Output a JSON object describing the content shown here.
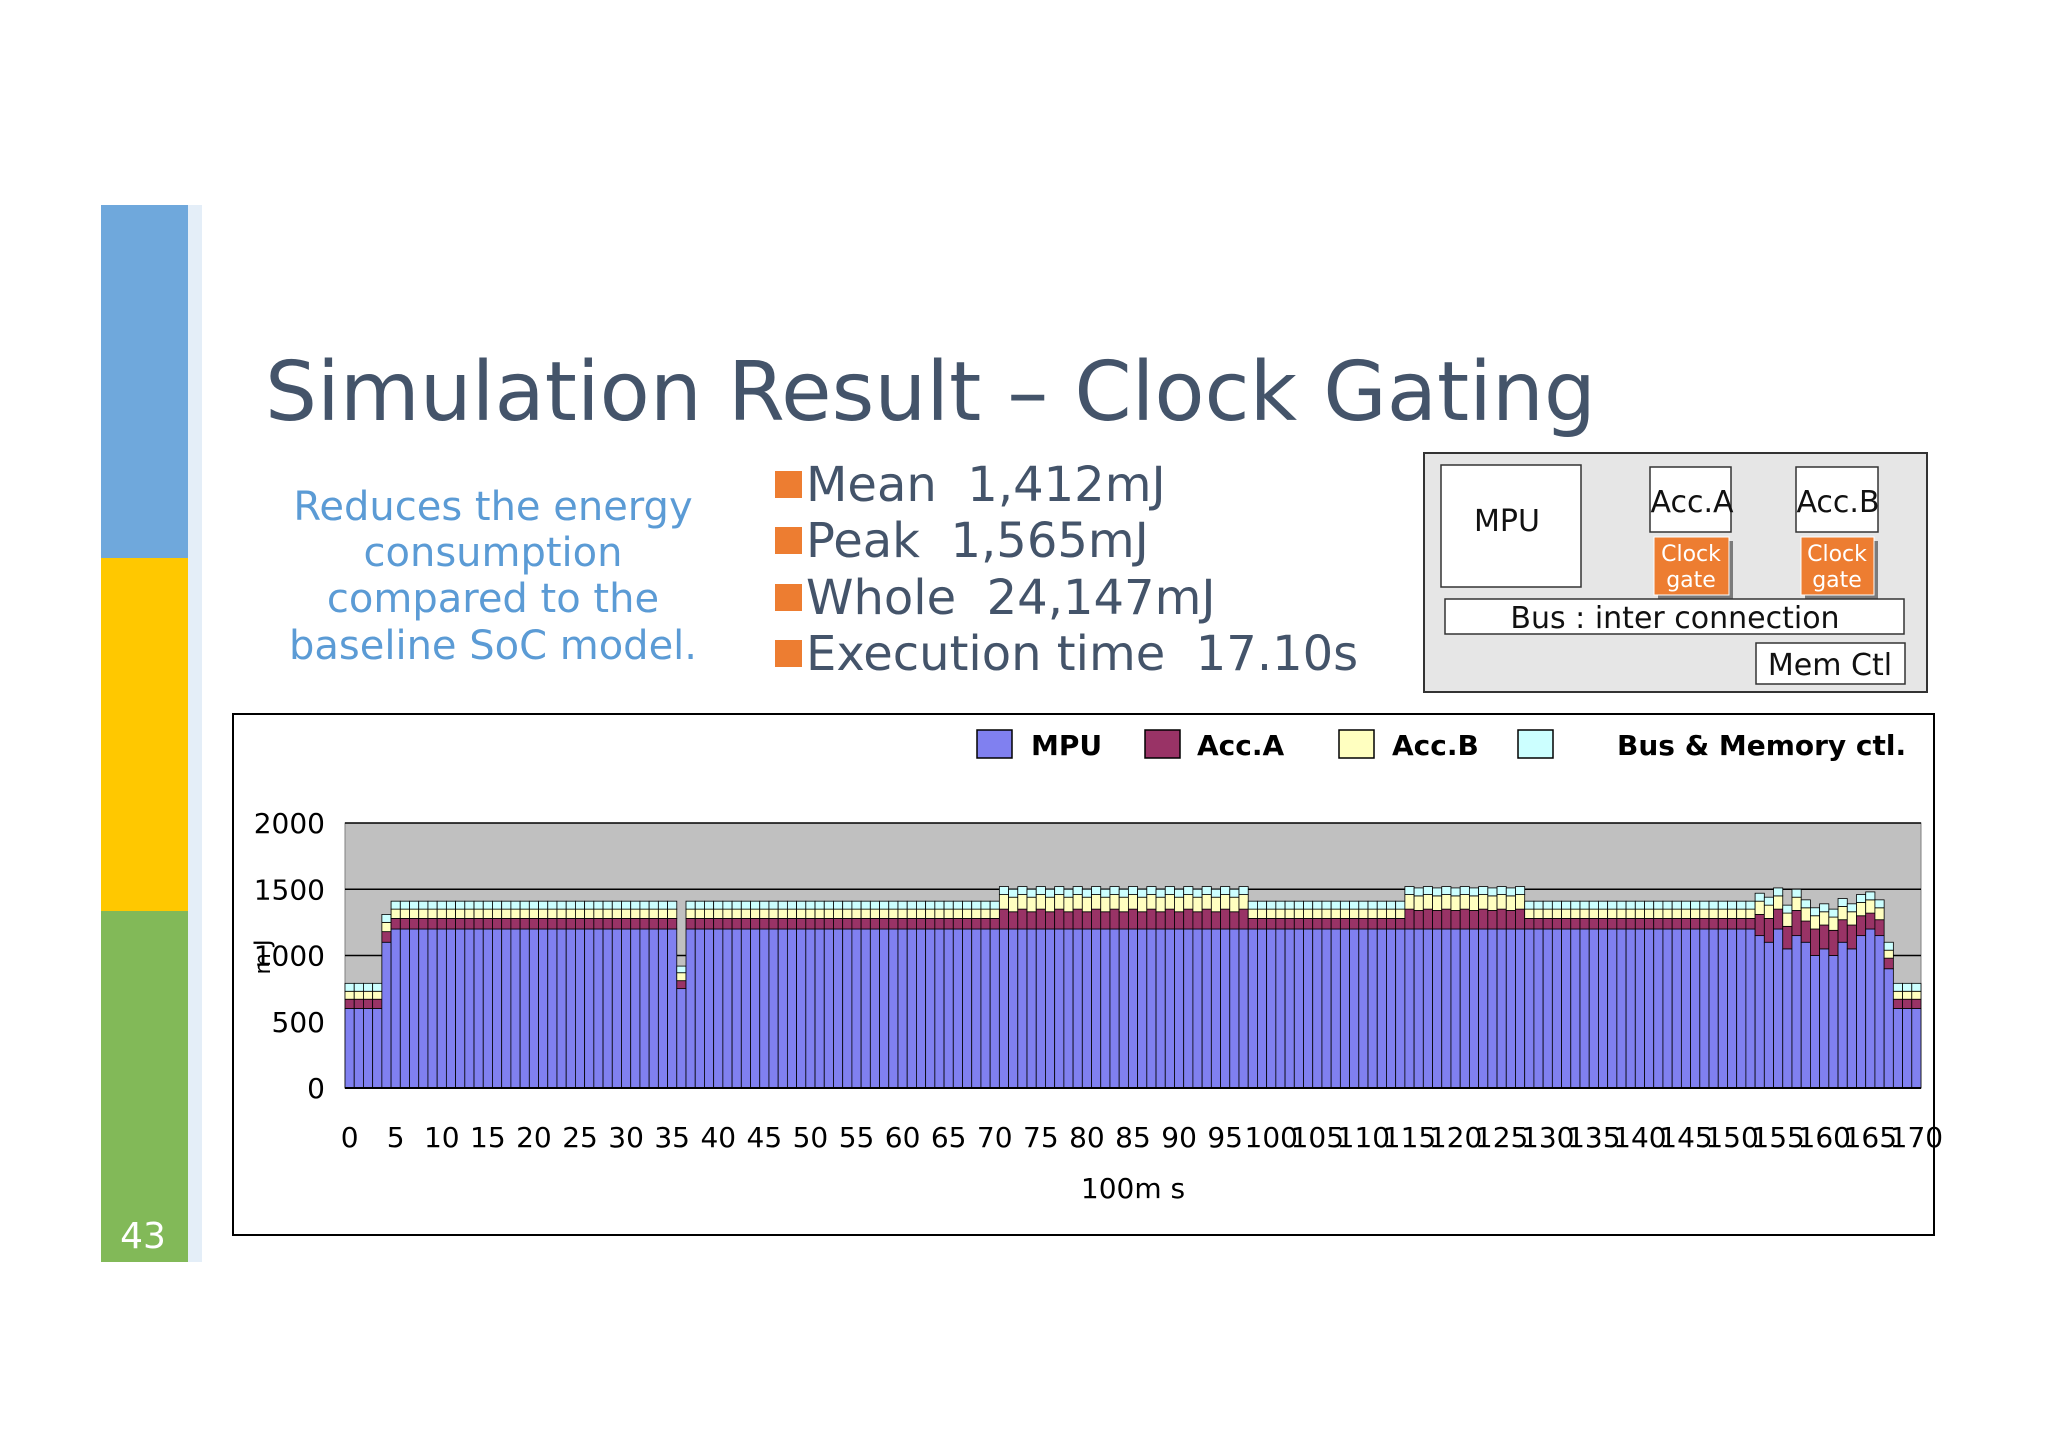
{
  "slide_number": "43",
  "title": "Simulation Result – Clock Gating",
  "side_text": [
    "Reduces the energy",
    "consumption",
    "compared to the",
    "baseline SoC model."
  ],
  "bullets": [
    "Mean  1,412mJ",
    "Peak  1,565mJ",
    "Whole  24,147mJ",
    "Execution time  17.10s"
  ],
  "diagram": {
    "mpu": "MPU",
    "acc_a": "Acc.A",
    "acc_b": "Acc.B",
    "clock_gate_a": [
      "Clock",
      "gate"
    ],
    "clock_gate_b": [
      "Clock",
      "gate"
    ],
    "bus": "Bus : inter connection",
    "mem": "Mem Ctl"
  },
  "chart_data": {
    "type": "stacked_bar",
    "y_label": "m J",
    "x_label": "100m s",
    "ylim": [
      0,
      2000
    ],
    "yticks": [
      0,
      500,
      1000,
      1500,
      2000
    ],
    "grid": true,
    "categories": [
      0,
      null,
      null,
      null,
      null,
      5,
      null,
      null,
      null,
      null,
      10,
      null,
      null,
      null,
      null,
      15,
      null,
      null,
      null,
      null,
      20,
      null,
      null,
      null,
      null,
      25,
      null,
      null,
      null,
      null,
      30,
      null,
      null,
      null,
      null,
      35,
      null,
      null,
      null,
      null,
      40,
      null,
      null,
      null,
      null,
      45,
      null,
      null,
      null,
      null,
      50,
      null,
      null,
      null,
      null,
      55,
      null,
      null,
      null,
      null,
      60,
      null,
      null,
      null,
      null,
      65,
      null,
      null,
      null,
      null,
      70,
      null,
      null,
      null,
      null,
      75,
      null,
      null,
      null,
      null,
      80,
      null,
      null,
      null,
      null,
      85,
      null,
      null,
      null,
      null,
      90,
      null,
      null,
      null,
      null,
      95,
      null,
      null,
      null,
      null,
      100,
      null,
      null,
      null,
      null,
      105,
      null,
      null,
      null,
      null,
      110,
      null,
      null,
      null,
      null,
      115,
      null,
      null,
      null,
      null,
      120,
      null,
      null,
      null,
      null,
      125,
      null,
      null,
      null,
      null,
      130,
      null,
      null,
      null,
      null,
      135,
      null,
      null,
      null,
      null,
      140,
      null,
      null,
      null,
      null,
      145,
      null,
      null,
      null,
      null,
      150,
      null,
      null,
      null,
      null,
      155,
      null,
      null,
      null,
      null,
      160,
      null,
      null,
      null,
      null,
      165,
      null,
      null,
      null,
      null,
      170
    ],
    "series": [
      {
        "name": "MPU",
        "color": "#8080f0",
        "values": [
          600,
          600,
          600,
          600,
          1100,
          1200,
          1200,
          1200,
          1200,
          1200,
          1200,
          1200,
          1200,
          1200,
          1200,
          1200,
          1200,
          1200,
          1200,
          1200,
          1200,
          1200,
          1200,
          1200,
          1200,
          1200,
          1200,
          1200,
          1200,
          1200,
          1200,
          1200,
          1200,
          1200,
          1200,
          1200,
          750,
          1200,
          1200,
          1200,
          1200,
          1200,
          1200,
          1200,
          1200,
          1200,
          1200,
          1200,
          1200,
          1200,
          1200,
          1200,
          1200,
          1200,
          1200,
          1200,
          1200,
          1200,
          1200,
          1200,
          1200,
          1200,
          1200,
          1200,
          1200,
          1200,
          1200,
          1200,
          1200,
          1200,
          1200,
          1200,
          1200,
          1200,
          1200,
          1200,
          1200,
          1200,
          1200,
          1200,
          1200,
          1200,
          1200,
          1200,
          1200,
          1200,
          1200,
          1200,
          1200,
          1200,
          1200,
          1200,
          1200,
          1200,
          1200,
          1200,
          1200,
          1200,
          1200,
          1200,
          1200,
          1200,
          1200,
          1200,
          1200,
          1200,
          1200,
          1200,
          1200,
          1200,
          1200,
          1200,
          1200,
          1200,
          1200,
          1200,
          1200,
          1200,
          1200,
          1200,
          1200,
          1200,
          1200,
          1200,
          1200,
          1200,
          1200,
          1200,
          1200,
          1200,
          1200,
          1200,
          1200,
          1200,
          1200,
          1200,
          1200,
          1200,
          1200,
          1200,
          1200,
          1200,
          1200,
          1200,
          1200,
          1200,
          1200,
          1200,
          1200,
          1200,
          1200,
          1200,
          1200,
          1150,
          1100,
          1200,
          1050,
          1150,
          1100,
          1000,
          1050,
          1000,
          1100,
          1050,
          1150,
          1200,
          1150,
          900,
          600,
          600,
          600
        ]
      },
      {
        "name": "Acc.A",
        "color": "#993366",
        "values": [
          70,
          70,
          70,
          70,
          80,
          80,
          80,
          80,
          80,
          80,
          80,
          80,
          80,
          80,
          80,
          80,
          80,
          80,
          80,
          80,
          80,
          80,
          80,
          80,
          80,
          80,
          80,
          80,
          80,
          80,
          80,
          80,
          80,
          80,
          80,
          80,
          60,
          80,
          80,
          80,
          80,
          80,
          80,
          80,
          80,
          80,
          80,
          80,
          80,
          80,
          80,
          80,
          80,
          80,
          80,
          80,
          80,
          80,
          80,
          80,
          80,
          80,
          80,
          80,
          80,
          80,
          80,
          80,
          80,
          80,
          80,
          150,
          130,
          150,
          130,
          150,
          130,
          150,
          130,
          150,
          130,
          150,
          130,
          150,
          130,
          150,
          130,
          150,
          130,
          150,
          130,
          150,
          130,
          150,
          130,
          150,
          130,
          150,
          80,
          80,
          80,
          80,
          80,
          80,
          80,
          80,
          80,
          80,
          80,
          80,
          80,
          80,
          80,
          80,
          80,
          150,
          140,
          150,
          140,
          150,
          140,
          150,
          140,
          150,
          140,
          150,
          140,
          150,
          80,
          80,
          80,
          80,
          80,
          80,
          80,
          80,
          80,
          80,
          80,
          80,
          80,
          80,
          80,
          80,
          80,
          80,
          80,
          80,
          80,
          80,
          80,
          80,
          80,
          160,
          180,
          150,
          170,
          190,
          160,
          200,
          180,
          190,
          170,
          180,
          150,
          120,
          120,
          80,
          70,
          70,
          70
        ]
      },
      {
        "name": "Acc.B",
        "color": "#ffffc0",
        "values": [
          60,
          60,
          60,
          60,
          70,
          70,
          70,
          70,
          70,
          70,
          70,
          70,
          70,
          70,
          70,
          70,
          70,
          70,
          70,
          70,
          70,
          70,
          70,
          70,
          70,
          70,
          70,
          70,
          70,
          70,
          70,
          70,
          70,
          70,
          70,
          70,
          60,
          70,
          70,
          70,
          70,
          70,
          70,
          70,
          70,
          70,
          70,
          70,
          70,
          70,
          70,
          70,
          70,
          70,
          70,
          70,
          70,
          70,
          70,
          70,
          70,
          70,
          70,
          70,
          70,
          70,
          70,
          70,
          70,
          70,
          70,
          110,
          110,
          110,
          110,
          110,
          110,
          110,
          110,
          110,
          110,
          110,
          110,
          110,
          110,
          110,
          110,
          110,
          110,
          110,
          110,
          110,
          110,
          110,
          110,
          110,
          110,
          110,
          70,
          70,
          70,
          70,
          70,
          70,
          70,
          70,
          70,
          70,
          70,
          70,
          70,
          70,
          70,
          70,
          70,
          110,
          110,
          110,
          110,
          110,
          110,
          110,
          110,
          110,
          110,
          110,
          110,
          110,
          70,
          70,
          70,
          70,
          70,
          70,
          70,
          70,
          70,
          70,
          70,
          70,
          70,
          70,
          70,
          70,
          70,
          70,
          70,
          70,
          70,
          70,
          70,
          70,
          70,
          100,
          100,
          100,
          100,
          100,
          100,
          100,
          100,
          100,
          100,
          100,
          100,
          100,
          90,
          60,
          60,
          60,
          60
        ]
      },
      {
        "name": "Bus & Memory ctl.",
        "color": "#ccffff",
        "values": [
          60,
          60,
          60,
          60,
          60,
          60,
          60,
          60,
          60,
          60,
          60,
          60,
          60,
          60,
          60,
          60,
          60,
          60,
          60,
          60,
          60,
          60,
          60,
          60,
          60,
          60,
          60,
          60,
          60,
          60,
          60,
          60,
          60,
          60,
          60,
          60,
          50,
          60,
          60,
          60,
          60,
          60,
          60,
          60,
          60,
          60,
          60,
          60,
          60,
          60,
          60,
          60,
          60,
          60,
          60,
          60,
          60,
          60,
          60,
          60,
          60,
          60,
          60,
          60,
          60,
          60,
          60,
          60,
          60,
          60,
          60,
          60,
          60,
          60,
          60,
          60,
          60,
          60,
          60,
          60,
          60,
          60,
          60,
          60,
          60,
          60,
          60,
          60,
          60,
          60,
          60,
          60,
          60,
          60,
          60,
          60,
          60,
          60,
          60,
          60,
          60,
          60,
          60,
          60,
          60,
          60,
          60,
          60,
          60,
          60,
          60,
          60,
          60,
          60,
          60,
          60,
          60,
          60,
          60,
          60,
          60,
          60,
          60,
          60,
          60,
          60,
          60,
          60,
          60,
          60,
          60,
          60,
          60,
          60,
          60,
          60,
          60,
          60,
          60,
          60,
          60,
          60,
          60,
          60,
          60,
          60,
          60,
          60,
          60,
          60,
          60,
          60,
          60,
          60,
          60,
          60,
          60,
          60,
          60,
          60,
          60,
          60,
          60,
          60,
          60,
          60,
          60,
          60,
          60,
          60,
          60
        ]
      }
    ]
  }
}
